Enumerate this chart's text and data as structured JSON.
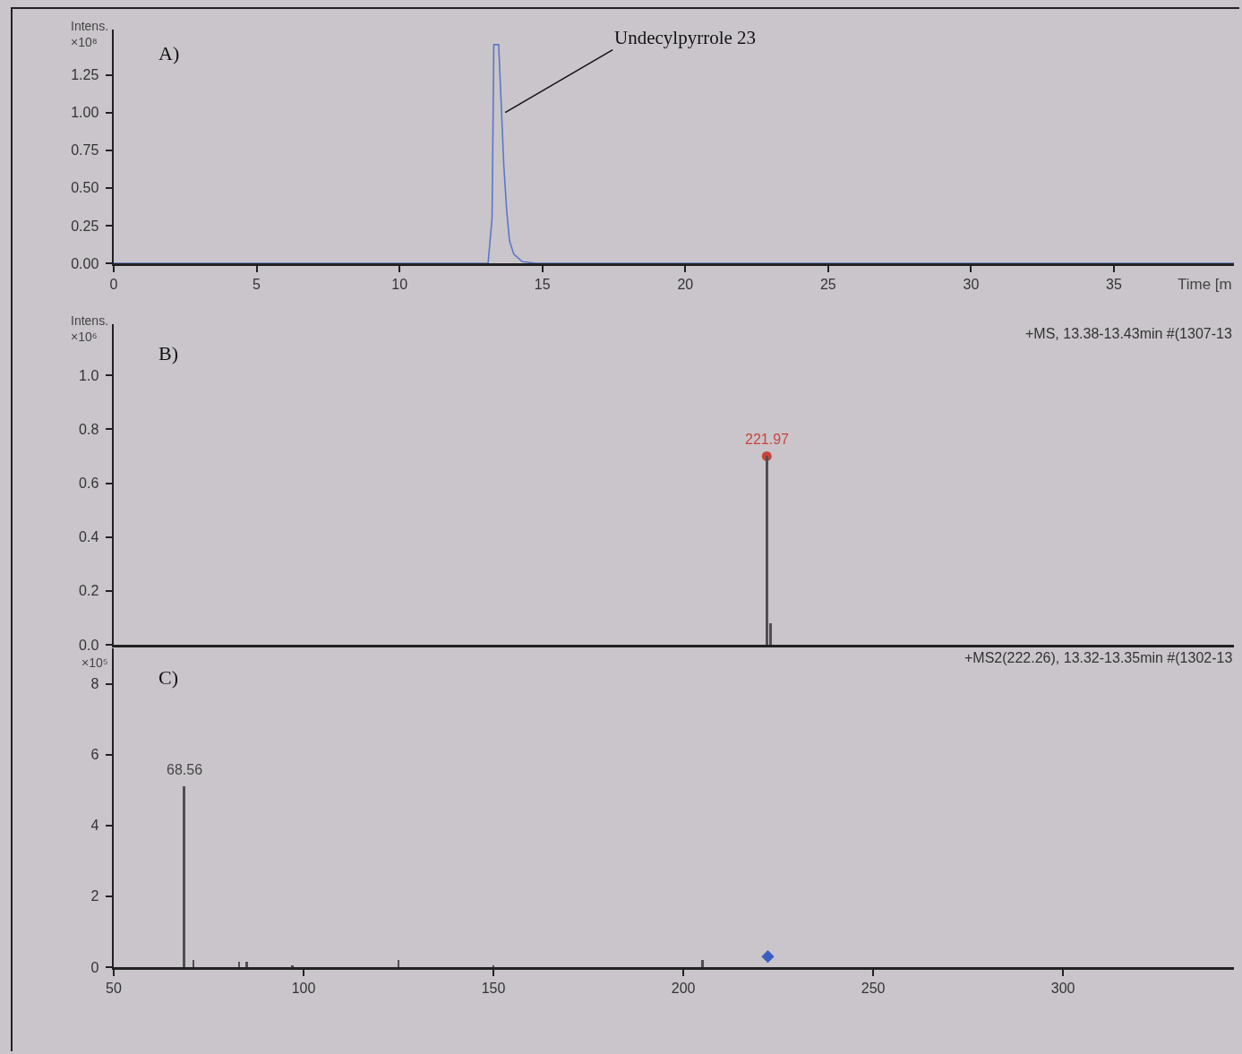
{
  "chart_data": [
    {
      "type": "line",
      "title": "A)",
      "xlabel": "Time [m",
      "ylabel": "Intens.\n×10⁸",
      "xlim": [
        0,
        39.2
      ],
      "xticks": [
        0,
        5,
        10,
        15,
        20,
        25,
        30,
        35
      ],
      "ylim": [
        0,
        1.55
      ],
      "yticks": [
        {
          "value": 0,
          "label": "0.00"
        },
        {
          "value": 0.25,
          "label": "0.25"
        },
        {
          "value": 0.5,
          "label": "0.50"
        },
        {
          "value": 0.75,
          "label": "0.75"
        },
        {
          "value": 1,
          "label": "1.00"
        },
        {
          "value": 1.25,
          "label": "1.25"
        }
      ],
      "series": [
        {
          "color": "#5a78c8",
          "x": [
            0,
            13.1,
            13.24,
            13.3,
            13.47,
            13.55,
            13.65,
            13.75,
            13.85,
            14.0,
            14.3,
            14.8,
            39.2
          ],
          "values": [
            0,
            0,
            0.3,
            1.45,
            1.45,
            1.1,
            0.65,
            0.35,
            0.15,
            0.06,
            0.01,
            0,
            0
          ]
        }
      ],
      "annotations": [
        {
          "text": "Undecylpyrrole 23",
          "x": 13.7,
          "y": 1.0
        }
      ]
    },
    {
      "type": "bar",
      "title": "B)",
      "ylabel": "Intens.\n×10⁶",
      "xlim": [
        50,
        345
      ],
      "ylim": [
        0,
        1.19
      ],
      "yticks": [
        {
          "value": 0,
          "label": "0.0"
        },
        {
          "value": 0.2,
          "label": "0.2"
        },
        {
          "value": 0.4,
          "label": "0.4"
        },
        {
          "value": 0.6,
          "label": "0.6"
        },
        {
          "value": 0.8,
          "label": "0.8"
        },
        {
          "value": 1,
          "label": "1.0"
        }
      ],
      "tick_labels": "y",
      "series": [
        {
          "color": "#505050",
          "x": [
            221.97,
            222.97
          ],
          "values": [
            0.7,
            0.08
          ]
        },
        {
          "type": "scatter",
          "marker": "circle",
          "color": "#c8453c",
          "x": [
            221.97
          ],
          "values": [
            0.7
          ]
        }
      ],
      "annotations": [
        "+MS, 13.38-13.43min #(1307-13",
        {
          "text": "221.97",
          "x": 221.97,
          "y": 0.7
        }
      ]
    },
    {
      "type": "bar",
      "title": "C)",
      "ylabel": "×10⁵",
      "xlim": [
        50,
        345
      ],
      "xticks": [
        50,
        100,
        150,
        200,
        250,
        300
      ],
      "ylim": [
        0,
        9
      ],
      "yticks": [
        0,
        2,
        4,
        6,
        8
      ],
      "series": [
        {
          "color": "#505050",
          "x": [
            68.56,
            71,
            83,
            85,
            97,
            125,
            150,
            205
          ],
          "values": [
            5.1,
            0.2,
            0.15,
            0.15,
            0.05,
            0.2,
            0.05,
            0.2
          ]
        },
        {
          "type": "scatter",
          "marker": "diamond",
          "color": "#3a5fc0",
          "x": [
            222.26
          ],
          "values": [
            0.3
          ]
        }
      ],
      "annotations": [
        "+MS2(222.26), 13.32-13.35min #(1302-13",
        {
          "text": "68.56",
          "x": 68.56,
          "y": 5.1
        }
      ]
    }
  ]
}
